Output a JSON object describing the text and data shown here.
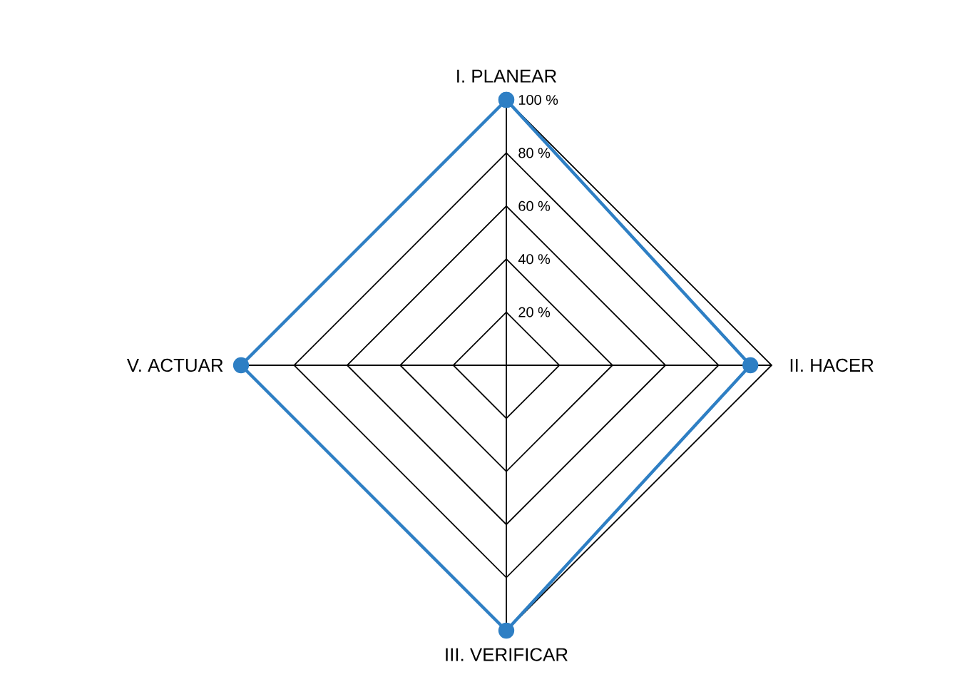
{
  "chart_data": {
    "type": "radar",
    "categories": [
      "I. PLANEAR",
      "II. HACER",
      "III. VERIFICAR",
      "V. ACTUAR"
    ],
    "series": [
      {
        "color": "#2e7fc4",
        "values": [
          100,
          92,
          100,
          100
        ]
      }
    ],
    "ylim": [
      0,
      100
    ],
    "yticks": [
      {
        "value": 20,
        "label": "20 %"
      },
      {
        "value": 40,
        "label": "40 %"
      },
      {
        "value": 60,
        "label": "60 %"
      },
      {
        "value": 80,
        "label": "80 %"
      },
      {
        "value": 100,
        "label": "100 %"
      }
    ],
    "grid": true,
    "marker": "circle",
    "line_style": "solid"
  }
}
